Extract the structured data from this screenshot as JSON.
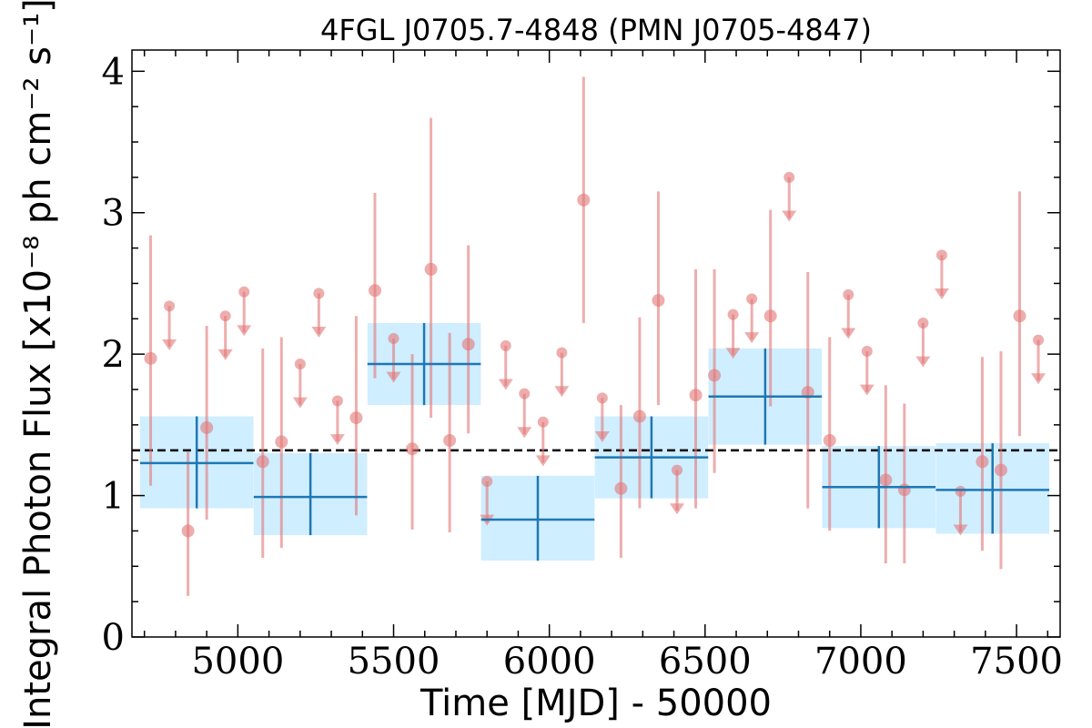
{
  "chart_data": {
    "type": "scatter",
    "title": "4FGL J0705.7-4848 (PMN J0705-4847)",
    "xlabel": "Time [MJD] - 50000",
    "ylabel": "Integral Photon Flux [x10⁻⁸ ph cm⁻² s⁻¹]",
    "xlim": [
      4660,
      7640
    ],
    "ylim": [
      0,
      4.15
    ],
    "x_ticks": [
      5000,
      5500,
      6000,
      6500,
      7000,
      7500
    ],
    "y_ticks": [
      0,
      1,
      2,
      3,
      4
    ],
    "average_flux": 1.32,
    "colors": {
      "monthly": "#e37777",
      "yearly": "#1f77b4",
      "yearly_band": "#cfeeff",
      "average": "#000000"
    },
    "series": [
      {
        "kind": "yearly_bins",
        "points": [
          {
            "x": 4868,
            "xerr": 182,
            "y": 1.23,
            "err_lo": 0.32,
            "err_hi": 0.33
          },
          {
            "x": 5233,
            "xerr": 182,
            "y": 0.99,
            "err_lo": 0.27,
            "err_hi": 0.31
          },
          {
            "x": 5598,
            "xerr": 182,
            "y": 1.93,
            "err_lo": 0.29,
            "err_hi": 0.29
          },
          {
            "x": 5963,
            "xerr": 182,
            "y": 0.83,
            "err_lo": 0.29,
            "err_hi": 0.31
          },
          {
            "x": 6328,
            "xerr": 182,
            "y": 1.27,
            "err_lo": 0.29,
            "err_hi": 0.29
          },
          {
            "x": 6693,
            "xerr": 182,
            "y": 1.7,
            "err_lo": 0.34,
            "err_hi": 0.34
          },
          {
            "x": 7058,
            "xerr": 182,
            "y": 1.06,
            "err_lo": 0.29,
            "err_hi": 0.29
          },
          {
            "x": 7423,
            "xerr": 182,
            "y": 1.04,
            "err_lo": 0.31,
            "err_hi": 0.33
          }
        ]
      },
      {
        "kind": "monthly_detections",
        "points": [
          {
            "x": 4720,
            "y": 1.97,
            "lo": 1.07,
            "hi": 2.84
          },
          {
            "x": 4840,
            "y": 0.75,
            "lo": 0.29,
            "hi": 1.31
          },
          {
            "x": 4900,
            "y": 1.48,
            "lo": 0.83,
            "hi": 2.2
          },
          {
            "x": 5080,
            "y": 1.24,
            "lo": 0.56,
            "hi": 2.04
          },
          {
            "x": 5140,
            "y": 1.38,
            "lo": 0.63,
            "hi": 2.12
          },
          {
            "x": 5380,
            "y": 1.55,
            "lo": 0.86,
            "hi": 2.27
          },
          {
            "x": 5440,
            "y": 2.45,
            "lo": 1.83,
            "hi": 3.14
          },
          {
            "x": 5560,
            "y": 1.33,
            "lo": 0.76,
            "hi": 2.0
          },
          {
            "x": 5620,
            "y": 2.6,
            "lo": 1.55,
            "hi": 3.67
          },
          {
            "x": 5680,
            "y": 1.39,
            "lo": 0.74,
            "hi": 2.15
          },
          {
            "x": 5740,
            "y": 2.07,
            "lo": 1.44,
            "hi": 2.77
          },
          {
            "x": 6110,
            "y": 3.09,
            "lo": 2.22,
            "hi": 3.96
          },
          {
            "x": 6230,
            "y": 1.05,
            "lo": 0.56,
            "hi": 1.64
          },
          {
            "x": 6290,
            "y": 1.56,
            "lo": 0.91,
            "hi": 2.26
          },
          {
            "x": 6350,
            "y": 2.38,
            "lo": 1.64,
            "hi": 3.15
          },
          {
            "x": 6470,
            "y": 1.71,
            "lo": 0.91,
            "hi": 2.6
          },
          {
            "x": 6530,
            "y": 1.85,
            "lo": 1.16,
            "hi": 2.6
          },
          {
            "x": 6710,
            "y": 2.27,
            "lo": 1.63,
            "hi": 3.02
          },
          {
            "x": 6830,
            "y": 1.73,
            "lo": 0.91,
            "hi": 2.58
          },
          {
            "x": 6900,
            "y": 1.39,
            "lo": 0.75,
            "hi": 2.12
          },
          {
            "x": 7080,
            "y": 1.11,
            "lo": 0.52,
            "hi": 1.78
          },
          {
            "x": 7140,
            "y": 1.04,
            "lo": 0.52,
            "hi": 1.65
          },
          {
            "x": 7390,
            "y": 1.24,
            "lo": 0.61,
            "hi": 1.98
          },
          {
            "x": 7450,
            "y": 1.18,
            "lo": 0.48,
            "hi": 2.02
          },
          {
            "x": 7510,
            "y": 2.27,
            "lo": 1.42,
            "hi": 3.15
          }
        ]
      },
      {
        "kind": "monthly_upper_limits",
        "points": [
          {
            "x": 4780,
            "y": 2.34
          },
          {
            "x": 4960,
            "y": 2.27
          },
          {
            "x": 5020,
            "y": 2.44
          },
          {
            "x": 5200,
            "y": 1.93
          },
          {
            "x": 5260,
            "y": 2.43
          },
          {
            "x": 5320,
            "y": 1.67
          },
          {
            "x": 5500,
            "y": 2.11
          },
          {
            "x": 5800,
            "y": 1.1
          },
          {
            "x": 5860,
            "y": 2.06
          },
          {
            "x": 5920,
            "y": 1.72
          },
          {
            "x": 5980,
            "y": 1.52
          },
          {
            "x": 6040,
            "y": 2.01
          },
          {
            "x": 6170,
            "y": 1.69
          },
          {
            "x": 6410,
            "y": 1.18
          },
          {
            "x": 6590,
            "y": 2.28
          },
          {
            "x": 6650,
            "y": 2.39
          },
          {
            "x": 6770,
            "y": 3.25
          },
          {
            "x": 6960,
            "y": 2.42
          },
          {
            "x": 7020,
            "y": 2.02
          },
          {
            "x": 7200,
            "y": 2.22
          },
          {
            "x": 7260,
            "y": 2.7
          },
          {
            "x": 7320,
            "y": 1.03
          },
          {
            "x": 7570,
            "y": 2.1
          }
        ]
      }
    ]
  }
}
